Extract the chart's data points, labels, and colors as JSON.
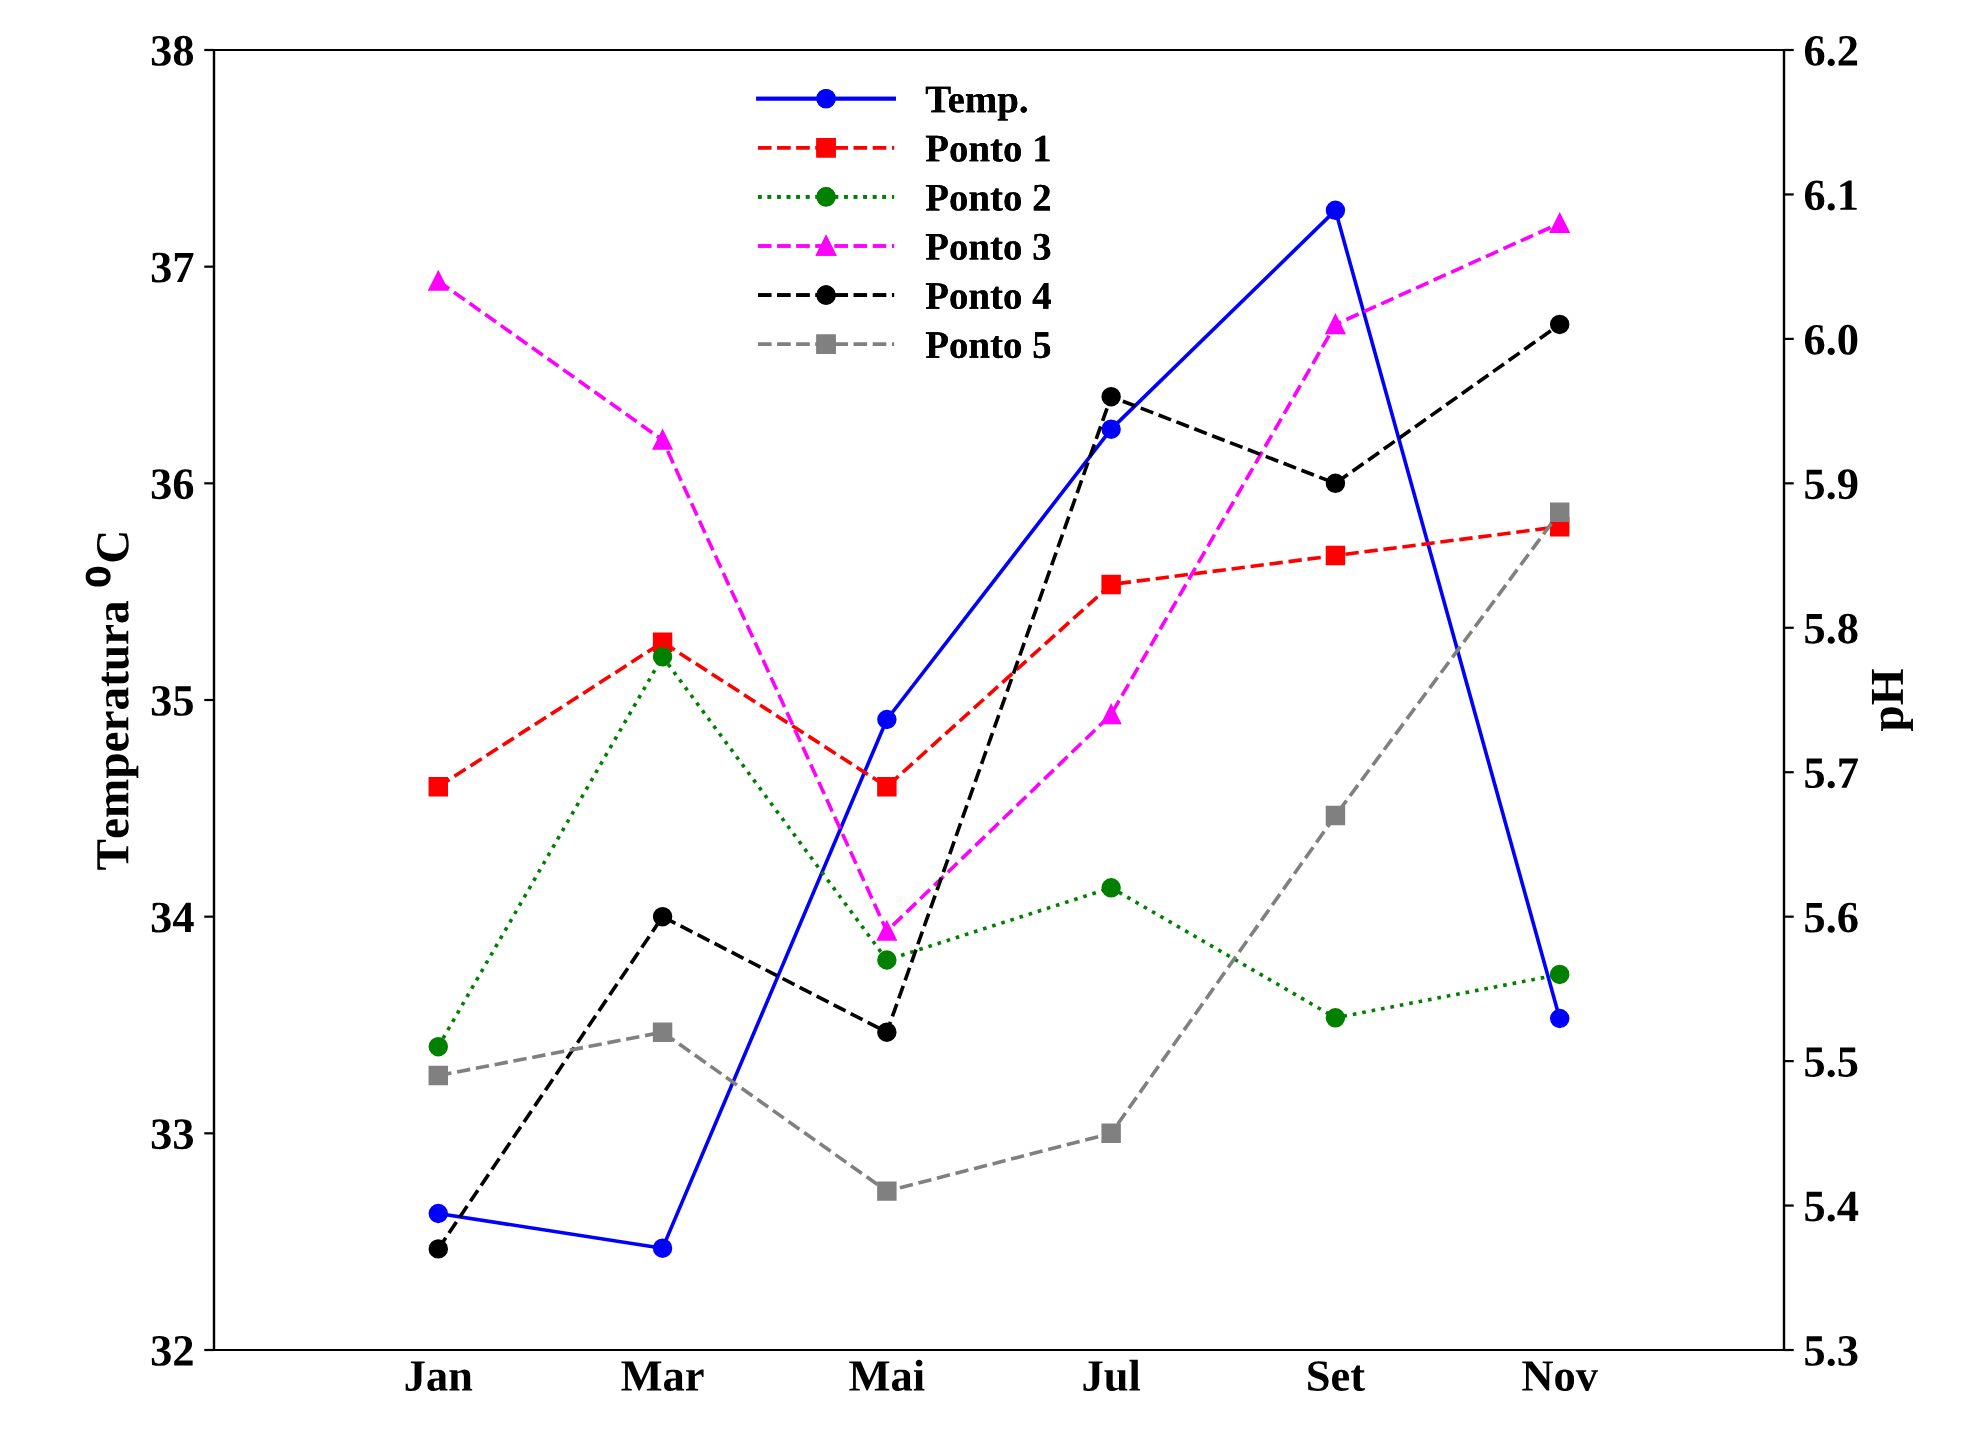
{
  "chart_data": {
    "type": "line",
    "ylabel": "Temperatura $^{0}$C",
    "y2label": "pH",
    "categories": [
      "Jan",
      "Mar",
      "Mai",
      "Jul",
      "Set",
      "Nov"
    ],
    "series": [
      {
        "name": "Temp.",
        "color": "#0000ff",
        "values": [
          32.63,
          32.47,
          34.91,
          36.25,
          37.26,
          33.53
        ],
        "marker": "circle",
        "line_style": "solid"
      },
      {
        "name": "Ponto 1",
        "color": "#ff0000",
        "axis": "y2",
        "values": [
          5.69,
          5.79,
          5.69,
          5.83,
          5.85,
          5.87
        ],
        "marker": "square",
        "line_style": "dashed"
      },
      {
        "name": "Ponto 2",
        "color": "#008000",
        "axis": "y2",
        "values": [
          5.51,
          5.78,
          5.57,
          5.62,
          5.53,
          5.56
        ],
        "marker": "circle",
        "line_style": "dotted"
      },
      {
        "name": "Ponto 3",
        "color": "#ff00ff",
        "axis": "y2",
        "values": [
          6.04,
          5.93,
          5.59,
          5.74,
          6.01,
          6.08
        ],
        "marker": "triangle",
        "line_style": "dashed"
      },
      {
        "name": "Ponto 4",
        "color": "#000000",
        "axis": "y2",
        "values": [
          5.37,
          5.6,
          5.52,
          5.96,
          5.9,
          6.01
        ],
        "marker": "circle",
        "line_style": "dashed"
      },
      {
        "name": "Ponto 5",
        "color": "#808080",
        "axis": "y2",
        "values": [
          5.49,
          5.52,
          5.41,
          5.45,
          5.67,
          5.88
        ],
        "marker": "square",
        "line_style": "dashed"
      }
    ],
    "ylim": [
      32,
      38
    ],
    "yticks": [
      32,
      33,
      34,
      35,
      36,
      37,
      38
    ],
    "y2lim": [
      5.3,
      6.2
    ],
    "y2ticks": [
      5.3,
      5.4,
      5.5,
      5.6,
      5.7,
      5.8,
      5.9,
      {
        "value": 6.0,
        "label": "6.0"
      },
      6.1,
      6.2
    ],
    "grid": false,
    "legend": "top"
  }
}
